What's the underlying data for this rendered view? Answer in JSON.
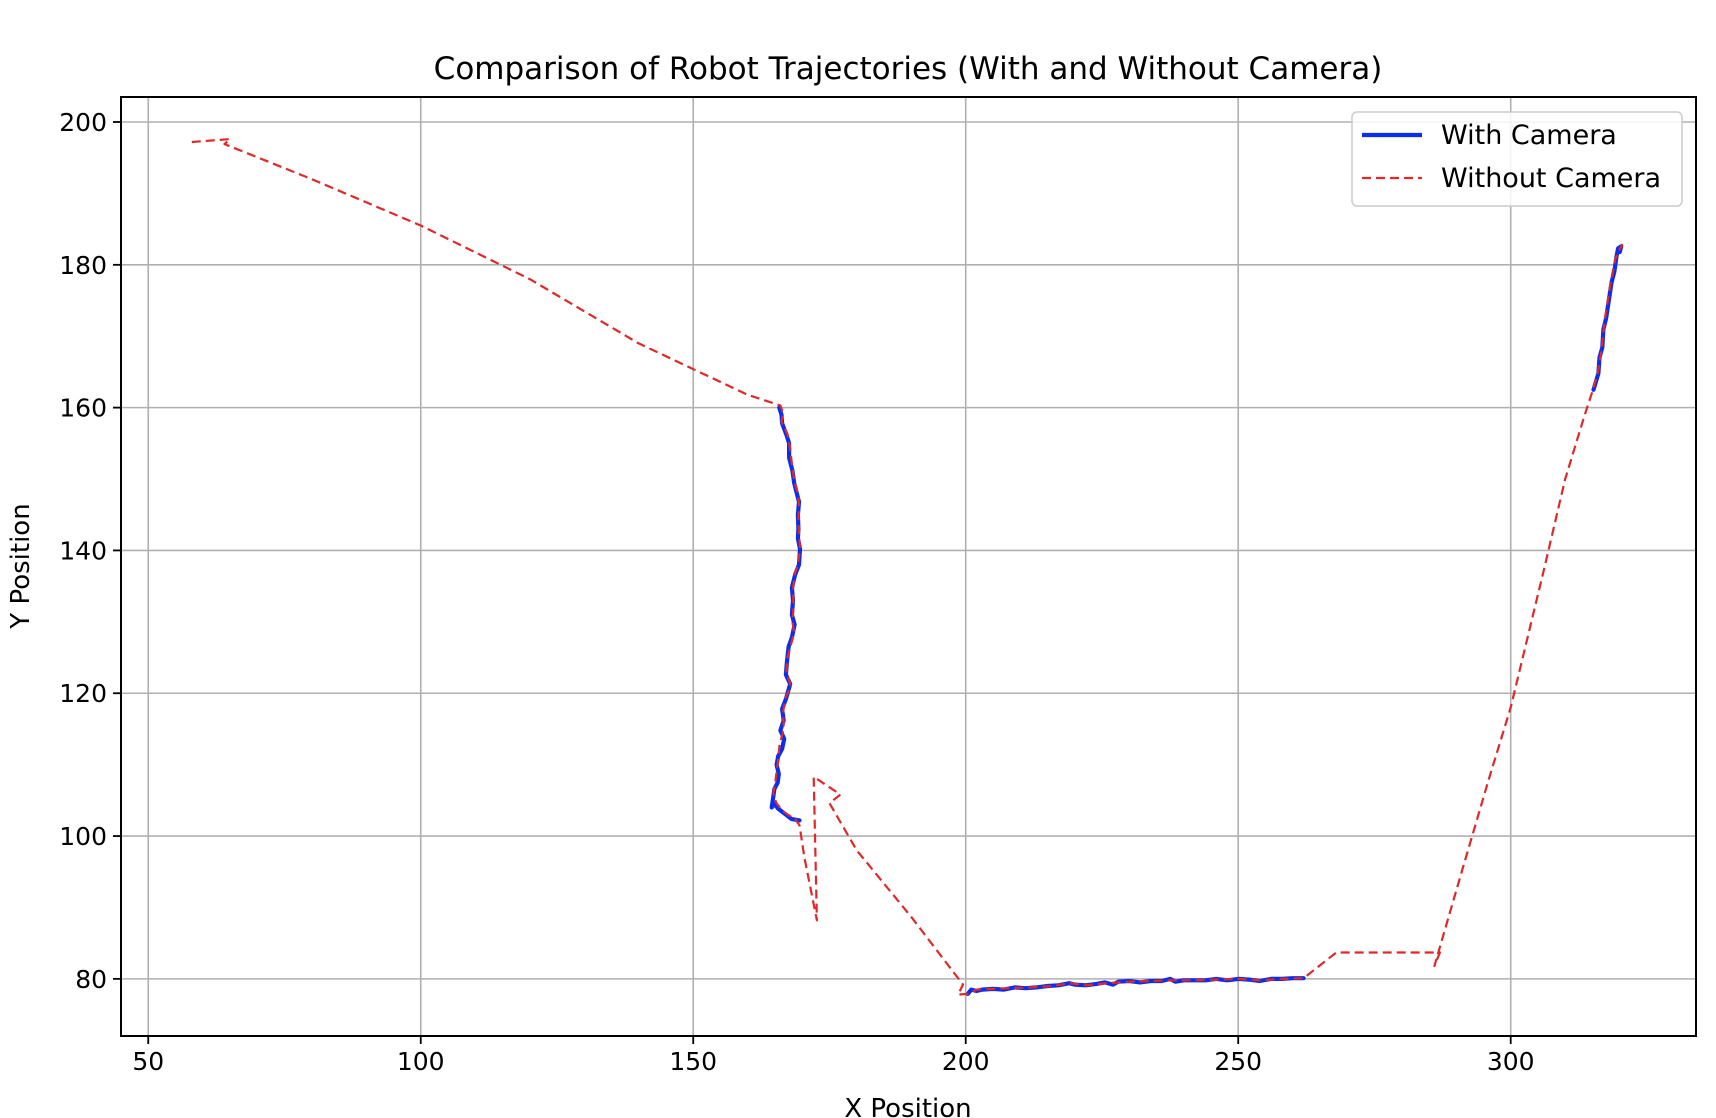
{
  "chart_data": {
    "type": "line",
    "title": "Comparison of Robot Trajectories (With and Without Camera)",
    "xlabel": "X Position",
    "ylabel": "Y Position",
    "xlim": [
      45,
      334
    ],
    "ylim": [
      72,
      203.5
    ],
    "xticks": [
      50,
      100,
      150,
      200,
      250,
      300
    ],
    "yticks": [
      80,
      100,
      120,
      140,
      160,
      180,
      200
    ],
    "grid": true,
    "legend_position": "top-right",
    "series": [
      {
        "name": "With Camera",
        "color": "#0a2ef0",
        "style": "solid",
        "segments": [
          [
            [
              169.5,
              102.2
            ],
            [
              168,
              102.4
            ],
            [
              167,
              103
            ],
            [
              166,
              103.6
            ],
            [
              165.5,
              103.9
            ],
            [
              165,
              104.5
            ],
            [
              164.4,
              104
            ],
            [
              164.7,
              105.5
            ],
            [
              164.9,
              106.6
            ],
            [
              165.5,
              107.5
            ],
            [
              165.7,
              108.7
            ],
            [
              165.3,
              110
            ],
            [
              165.6,
              111.2
            ],
            [
              166.3,
              112.2
            ],
            [
              166.7,
              113.6
            ],
            [
              166,
              114.8
            ],
            [
              166.6,
              116.2
            ],
            [
              166.3,
              117.8
            ],
            [
              167,
              119.2
            ],
            [
              167.8,
              121.3
            ],
            [
              167,
              122.6
            ],
            [
              167.2,
              124.5
            ],
            [
              167.5,
              126.5
            ],
            [
              168.1,
              127.8
            ],
            [
              168.6,
              129.6
            ],
            [
              168.1,
              131
            ],
            [
              168.3,
              133
            ],
            [
              168.1,
              134.8
            ],
            [
              168.7,
              136.6
            ],
            [
              169.4,
              138
            ],
            [
              169.6,
              140.2
            ],
            [
              169.2,
              141.7
            ],
            [
              169.3,
              143
            ],
            [
              169.2,
              145
            ],
            [
              169.4,
              146.8
            ],
            [
              169,
              148
            ],
            [
              168.5,
              149.5
            ],
            [
              168.2,
              151.2
            ],
            [
              167.6,
              153
            ],
            [
              167.6,
              155
            ],
            [
              167.1,
              156.2
            ],
            [
              166.3,
              157.8
            ],
            [
              166.2,
              159
            ],
            [
              165.8,
              160
            ]
          ],
          [
            [
              200.4,
              77.9
            ],
            [
              201,
              78.5
            ],
            [
              202,
              78.3
            ],
            [
              203,
              78.5
            ],
            [
              205,
              78.6
            ],
            [
              207,
              78.5
            ],
            [
              209,
              78.8
            ],
            [
              211,
              78.7
            ],
            [
              213,
              78.8
            ],
            [
              215,
              79
            ],
            [
              217,
              79.1
            ],
            [
              219,
              79.4
            ],
            [
              220,
              79.2
            ],
            [
              222,
              79.1
            ],
            [
              224,
              79.3
            ],
            [
              225.5,
              79.5
            ],
            [
              227,
              79.2
            ],
            [
              228,
              79.6
            ],
            [
              230,
              79.7
            ],
            [
              232,
              79.5
            ],
            [
              234,
              79.7
            ],
            [
              236,
              79.7
            ],
            [
              237.5,
              80
            ],
            [
              238.5,
              79.6
            ],
            [
              240,
              79.8
            ],
            [
              242,
              79.8
            ],
            [
              244,
              79.8
            ],
            [
              246,
              80
            ],
            [
              248,
              79.8
            ],
            [
              250,
              80
            ],
            [
              252,
              79.9
            ],
            [
              254,
              79.7
            ],
            [
              256,
              80
            ],
            [
              258,
              80
            ],
            [
              260,
              80.1
            ],
            [
              262,
              80.1
            ]
          ],
          [
            [
              315.2,
              162.5
            ],
            [
              316.1,
              164.8
            ],
            [
              316.3,
              167
            ],
            [
              316.8,
              168.4
            ],
            [
              317,
              171
            ],
            [
              317.5,
              172.5
            ],
            [
              318,
              175
            ],
            [
              318.5,
              177.5
            ],
            [
              319,
              179
            ],
            [
              319.4,
              181.1
            ],
            [
              319.7,
              182.3
            ],
            [
              320.3,
              182.6
            ],
            [
              320,
              181.8
            ]
          ]
        ]
      },
      {
        "name": "Without Camera",
        "color": "#e02828",
        "style": "dashed",
        "segments": [
          [
            [
              58,
              197.2
            ],
            [
              65,
              197.6
            ],
            [
              64,
              196.9
            ],
            [
              80,
              192
            ],
            [
              100,
              185.5
            ],
            [
              120,
              178
            ],
            [
              140,
              169
            ],
            [
              160,
              161.8
            ],
            [
              166,
              160.3
            ],
            [
              166.5,
              159.2
            ],
            [
              166.2,
              158
            ],
            [
              167.3,
              156.3
            ],
            [
              167.8,
              154.2
            ],
            [
              168.2,
              151.5
            ],
            [
              168.6,
              149.5
            ],
            [
              169.2,
              148
            ],
            [
              169.4,
              146.5
            ],
            [
              169.3,
              144.3
            ],
            [
              169.4,
              142.3
            ],
            [
              169.6,
              140.2
            ],
            [
              169.2,
              138
            ],
            [
              168.6,
              136.6
            ],
            [
              168.3,
              134.5
            ],
            [
              168.4,
              132
            ],
            [
              168.2,
              130
            ],
            [
              168.5,
              128.5
            ],
            [
              168,
              127
            ],
            [
              167.3,
              125
            ],
            [
              167.1,
              123
            ],
            [
              167.9,
              121
            ],
            [
              167,
              119.5
            ],
            [
              166.5,
              117.5
            ],
            [
              166.6,
              115
            ],
            [
              166.2,
              113.8
            ],
            [
              165.8,
              112.5
            ],
            [
              165.6,
              110.7
            ],
            [
              165.3,
              109
            ],
            [
              165.1,
              107.8
            ],
            [
              164.7,
              106
            ],
            [
              165.2,
              104.7
            ],
            [
              166.4,
              103.5
            ],
            [
              168.8,
              102.3
            ],
            [
              169.5,
              101.5
            ],
            [
              170.4,
              97
            ],
            [
              172.7,
              88.2
            ],
            [
              172.1,
              108.3
            ],
            [
              177,
              105.8
            ],
            [
              175,
              104.6
            ],
            [
              180,
              98
            ],
            [
              190,
              88.7
            ],
            [
              199.5,
              79.2
            ],
            [
              198.6,
              77.8
            ],
            [
              200.5,
              77.9
            ],
            [
              202,
              78.5
            ],
            [
              205,
              78.6
            ],
            [
              208,
              78.7
            ],
            [
              212,
              78.8
            ],
            [
              216,
              79
            ],
            [
              219,
              79.4
            ],
            [
              222,
              79.1
            ],
            [
              226,
              79.4
            ],
            [
              230,
              79.6
            ],
            [
              234,
              79.7
            ],
            [
              238,
              79.8
            ],
            [
              242,
              79.8
            ],
            [
              246,
              79.9
            ],
            [
              250,
              80
            ],
            [
              254,
              79.8
            ],
            [
              258,
              80
            ],
            [
              262,
              80.1
            ],
            [
              268,
              83.7
            ],
            [
              287,
              83.7
            ],
            [
              286,
              81.8
            ],
            [
              291,
              95
            ],
            [
              296,
              108
            ],
            [
              300,
              118
            ],
            [
              306,
              137
            ],
            [
              310,
              150
            ],
            [
              313.5,
              158.8
            ],
            [
              315,
              162.3
            ],
            [
              316,
              165
            ],
            [
              316.6,
              167.8
            ],
            [
              317.2,
              172
            ],
            [
              317.9,
              175.5
            ],
            [
              318.6,
              178.6
            ],
            [
              319.2,
              180.8
            ],
            [
              320,
              182.2
            ],
            [
              320.4,
              182.8
            ],
            [
              320,
              181.8
            ]
          ]
        ]
      }
    ]
  }
}
